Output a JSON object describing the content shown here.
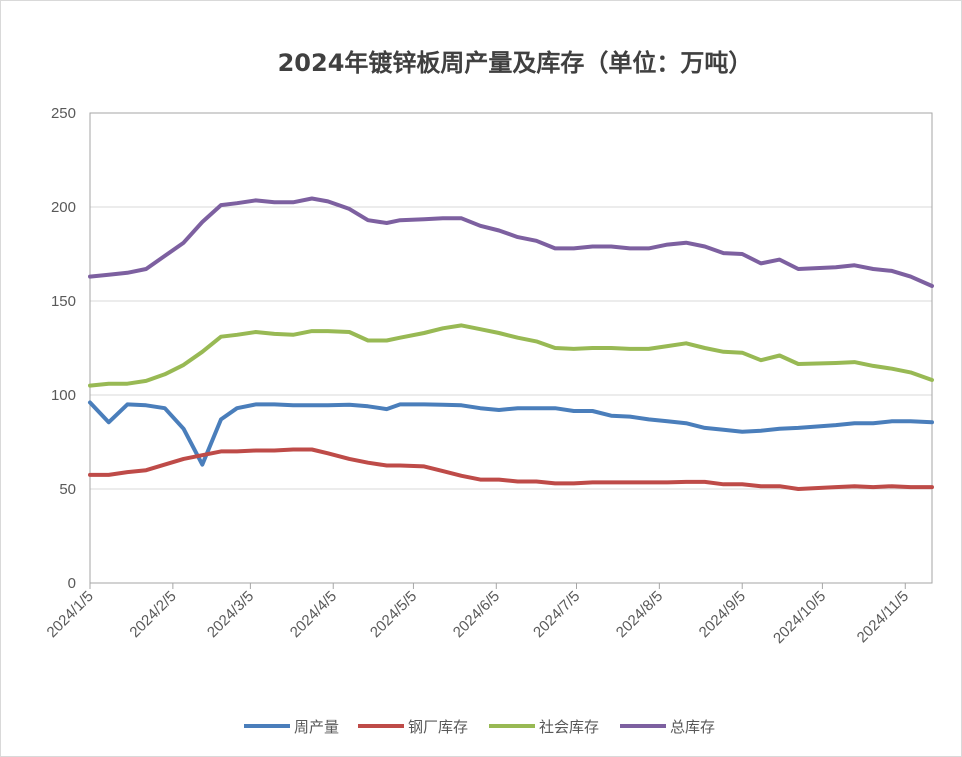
{
  "chart_data": {
    "type": "line",
    "title": "2024年镀锌板周产量及库存（单位：万吨）",
    "ylim": [
      0,
      250
    ],
    "yticks": [
      0,
      50,
      100,
      150,
      200,
      250
    ],
    "grid": true,
    "legend_position": "bottom",
    "x_start": "2024/1/5",
    "x_end": "2024/11/15",
    "x_tick_labels": [
      "2024/1/5",
      "2024/2/5",
      "2024/3/5",
      "2024/4/5",
      "2024/5/5",
      "2024/6/5",
      "2024/7/5",
      "2024/8/5",
      "2024/9/5",
      "2024/10/5",
      "2024/11/5"
    ],
    "x": [
      "2024/1/5",
      "2024/1/12",
      "2024/1/19",
      "2024/1/26",
      "2024/2/2",
      "2024/2/9",
      "2024/2/16",
      "2024/2/23",
      "2024/2/29",
      "2024/3/7",
      "2024/3/14",
      "2024/3/21",
      "2024/3/28",
      "2024/4/3",
      "2024/4/11",
      "2024/4/18",
      "2024/4/25",
      "2024/4/30",
      "2024/5/9",
      "2024/5/16",
      "2024/5/23",
      "2024/5/30",
      "2024/6/6",
      "2024/6/13",
      "2024/6/20",
      "2024/6/27",
      "2024/7/4",
      "2024/7/11",
      "2024/7/18",
      "2024/7/25",
      "2024/8/1",
      "2024/8/8",
      "2024/8/15",
      "2024/8/22",
      "2024/8/29",
      "2024/9/5",
      "2024/9/12",
      "2024/9/19",
      "2024/9/26",
      "2024/10/10",
      "2024/10/17",
      "2024/10/24",
      "2024/10/31",
      "2024/11/7",
      "2024/11/15"
    ],
    "series": [
      {
        "name": "周产量",
        "color": "#4a7ebb",
        "values": [
          96,
          85.5,
          95,
          94.5,
          93,
          82,
          63,
          87,
          93,
          95,
          95,
          94.5,
          94.5,
          94.5,
          94.8,
          94,
          92.5,
          95,
          95,
          94.8,
          94.5,
          93,
          92,
          93,
          93,
          93,
          91.5,
          91.5,
          89,
          88.5,
          87,
          86,
          85,
          82.5,
          81.5,
          80.5,
          81,
          82,
          82.5,
          84,
          85,
          85,
          86,
          86,
          85.5
        ]
      },
      {
        "name": "钢厂库存",
        "color": "#be4b48",
        "values": [
          57.5,
          57.5,
          59,
          60,
          63,
          66,
          68,
          70,
          70,
          70.5,
          70.5,
          71,
          71,
          69,
          66,
          64,
          62.5,
          62.5,
          62,
          59.5,
          57,
          55,
          55,
          54,
          54,
          53,
          53,
          53.5,
          53.5,
          53.5,
          53.5,
          53.5,
          53.8,
          53.8,
          52.5,
          52.5,
          51.5,
          51.5,
          50,
          51,
          51.5,
          51,
          51.5,
          51,
          51
        ]
      },
      {
        "name": "社会库存",
        "color": "#98b954",
        "values": [
          105,
          106,
          106,
          107.5,
          111,
          116,
          123,
          131,
          132,
          133.5,
          132.5,
          132,
          134,
          134,
          133.5,
          129,
          129,
          130.5,
          133,
          135.5,
          137,
          135,
          133,
          130.5,
          128.5,
          125,
          124.5,
          125,
          125,
          124.5,
          124.5,
          126,
          127.5,
          125,
          123,
          122.5,
          118.5,
          121,
          116.5,
          117,
          117.5,
          115.5,
          114,
          112,
          108
        ]
      },
      {
        "name": "总库存",
        "color": "#7d60a0",
        "values": [
          163,
          164,
          165,
          167,
          174,
          181,
          192,
          201,
          202,
          203.5,
          202.5,
          202.5,
          204.5,
          203,
          199,
          193,
          191.5,
          193,
          193.5,
          194,
          194,
          190,
          187.5,
          184,
          182,
          178,
          178,
          179,
          179,
          178,
          178,
          180,
          181,
          179,
          175.5,
          175,
          170,
          172,
          167,
          168,
          169,
          167,
          166,
          163,
          158
        ]
      }
    ]
  }
}
